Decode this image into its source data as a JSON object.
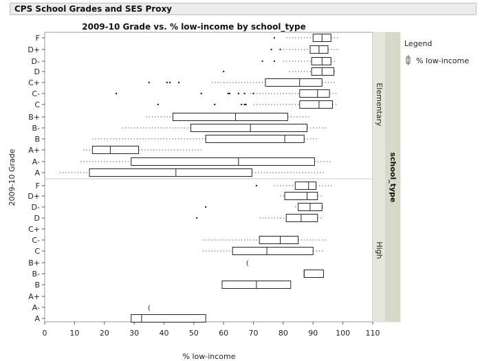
{
  "window": {
    "panel_title": "CPS School Grades and SES Proxy"
  },
  "legend": {
    "title": "Legend",
    "item": "% low-income"
  },
  "chart_data": {
    "type": "box",
    "title": "2009-10 Grade vs. % low-income by school_type",
    "xlabel": "% low-income",
    "ylabel": "2009-10 Grade",
    "facet_label": "school_type",
    "xlim": [
      0,
      110
    ],
    "xticks": [
      0,
      10,
      20,
      30,
      40,
      50,
      60,
      70,
      80,
      90,
      100,
      110
    ],
    "categories": [
      "F",
      "D+",
      "D-",
      "D",
      "C+",
      "C-",
      "C",
      "B+",
      "B-",
      "B",
      "A+",
      "A-",
      "A"
    ],
    "panels": [
      {
        "name": "Elementary",
        "boxes": [
          {
            "grade": "F",
            "wlo": 81,
            "q1": 90,
            "med": 93,
            "q3": 96,
            "whi": 99,
            "outliers": [
              77
            ]
          },
          {
            "grade": "D+",
            "wlo": 80,
            "q1": 89,
            "med": 92,
            "q3": 95,
            "whi": 99,
            "outliers": [
              76,
              79
            ]
          },
          {
            "grade": "D-",
            "wlo": 80,
            "q1": 89.5,
            "med": 93,
            "q3": 96,
            "whi": 98,
            "outliers": [
              73,
              77
            ]
          },
          {
            "grade": "D",
            "wlo": 82,
            "q1": 89.5,
            "med": 93,
            "q3": 97,
            "whi": 98,
            "outliers": [
              60
            ]
          },
          {
            "grade": "C+",
            "wlo": 56,
            "q1": 74,
            "med": 85.5,
            "q3": 93,
            "whi": 98,
            "outliers": [
              35,
              41,
              42,
              45
            ]
          },
          {
            "grade": "C-",
            "wlo": 69,
            "q1": 85.5,
            "med": 91.5,
            "q3": 95.5,
            "whi": 98,
            "outliers": [
              24,
              52.5,
              61.5,
              62,
              65,
              67,
              70
            ]
          },
          {
            "grade": "C",
            "wlo": 70,
            "q1": 85.5,
            "med": 92,
            "q3": 96.5,
            "whi": 98,
            "outliers": [
              38,
              57,
              66,
              67,
              67.5
            ]
          },
          {
            "grade": "B+",
            "wlo": 34,
            "q1": 43,
            "med": 64,
            "q3": 81.5,
            "whi": 89,
            "outliers": []
          },
          {
            "grade": "B-",
            "wlo": 26,
            "q1": 49,
            "med": 69,
            "q3": 88,
            "whi": 95,
            "outliers": []
          },
          {
            "grade": "B",
            "wlo": 16,
            "q1": 54,
            "med": 80.5,
            "q3": 87,
            "whi": 92,
            "outliers": []
          },
          {
            "grade": "A+",
            "wlo": 13,
            "q1": 16,
            "med": 22,
            "q3": 31.5,
            "whi": 53,
            "outliers": []
          },
          {
            "grade": "A-",
            "wlo": 12,
            "q1": 29,
            "med": 65,
            "q3": 90.5,
            "whi": 96,
            "outliers": []
          },
          {
            "grade": "A",
            "wlo": 5,
            "q1": 15,
            "med": 44,
            "q3": 69.5,
            "whi": 94,
            "outliers": []
          }
        ]
      },
      {
        "name": "High",
        "boxes": [
          {
            "grade": "F",
            "wlo": 77,
            "q1": 84,
            "med": 88.5,
            "q3": 91,
            "whi": 97,
            "outliers": [
              71
            ]
          },
          {
            "grade": "D+",
            "wlo": 79,
            "q1": 80.5,
            "med": 88,
            "q3": 91.5,
            "whi": 93,
            "outliers": []
          },
          {
            "grade": "D-",
            "wlo": 84,
            "q1": 85,
            "med": 89,
            "q3": 93,
            "whi": 94,
            "outliers": [
              54
            ]
          },
          {
            "grade": "D",
            "wlo": 72,
            "q1": 81,
            "med": 86,
            "q3": 91.5,
            "whi": 93,
            "outliers": [
              51
            ]
          },
          {
            "grade": "C+",
            "empty": true
          },
          {
            "grade": "C-",
            "wlo": 53,
            "q1": 72,
            "med": 79,
            "q3": 85,
            "whi": 95,
            "outliers": []
          },
          {
            "grade": "C",
            "wlo": 53,
            "q1": 63,
            "med": 74.5,
            "q3": 90,
            "whi": 94,
            "outliers": []
          },
          {
            "grade": "B+",
            "single": 68
          },
          {
            "grade": "B-",
            "q1": 87,
            "med": 87,
            "q3": 93.5,
            "wlo": 87,
            "whi": 93.5,
            "outliers": []
          },
          {
            "grade": "B",
            "q1": 59.5,
            "med": 71,
            "q3": 82.5,
            "wlo": 59.5,
            "whi": 82.5,
            "outliers": []
          },
          {
            "grade": "A+",
            "empty": true
          },
          {
            "grade": "A-",
            "single": 35
          },
          {
            "grade": "A",
            "wlo": 29,
            "q1": 29,
            "med": 32.5,
            "q3": 54,
            "whi": 54,
            "outliers": []
          }
        ]
      }
    ]
  }
}
